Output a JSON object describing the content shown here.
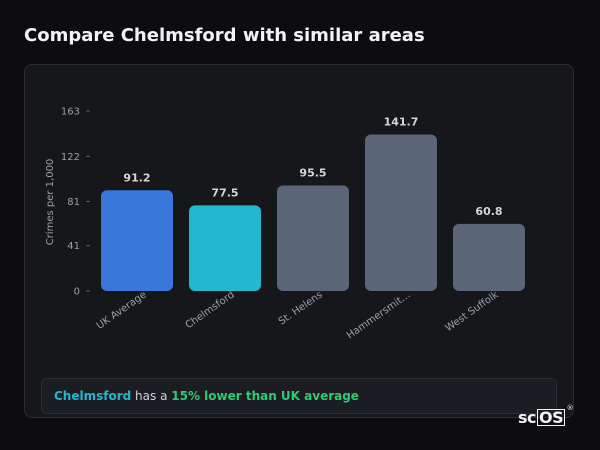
{
  "header": {
    "title": "Compare Chelmsford with similar areas"
  },
  "colors": {
    "uk_average": "#3a77db",
    "highlight": "#22b8cf",
    "others": "#5a6677",
    "text_green": "#2ecc71"
  },
  "chart_data": {
    "type": "bar",
    "ylabel": "Crimes per 1,000",
    "categories": [
      "UK Average",
      "Chelmsford",
      "St. Helens",
      "Hammersmit…",
      "West Suffolk"
    ],
    "values": [
      91.2,
      77.5,
      95.5,
      141.7,
      60.8
    ],
    "value_labels": [
      "91.2",
      "77.5",
      "95.5",
      "141.7",
      "60.8"
    ],
    "yticks": [
      "0",
      "41",
      "81",
      "122",
      "163"
    ],
    "ylim": [
      0,
      163
    ]
  },
  "footer": {
    "area": "Chelmsford",
    "middle": " has a ",
    "comparison": "15% lower than UK average"
  },
  "logo": {
    "sc": "sc",
    "os": "OS",
    "reg": "®"
  }
}
